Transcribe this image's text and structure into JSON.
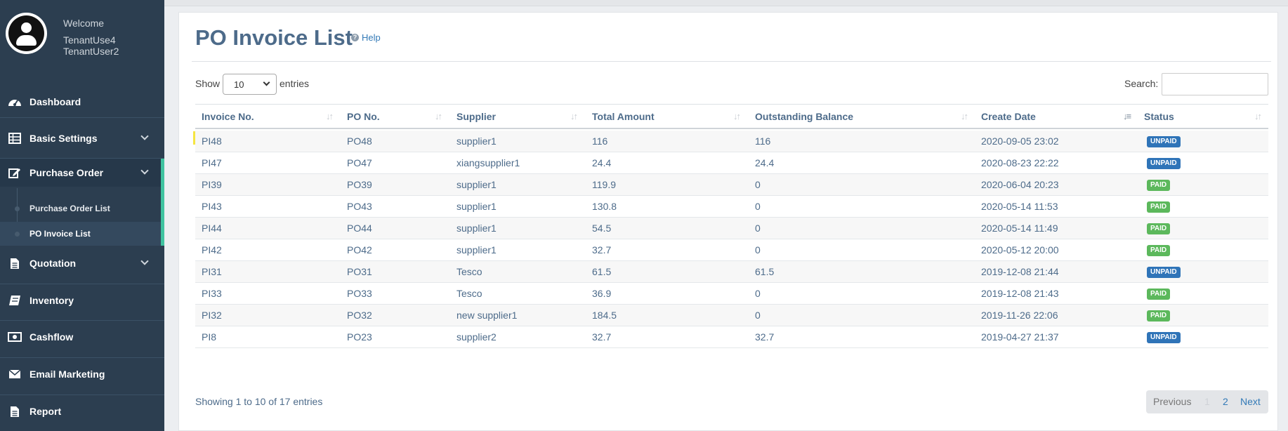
{
  "sidebar": {
    "welcome": "Welcome",
    "user_line1": "TenantUse4",
    "user_line2": "TenantUser2",
    "items": [
      {
        "label": "Dashboard",
        "icon": "dashboard-icon"
      },
      {
        "label": "Basic Settings",
        "icon": "table-icon"
      },
      {
        "label": "Purchase Order",
        "icon": "edit-icon"
      },
      {
        "label": "Quotation",
        "icon": "document-icon"
      },
      {
        "label": "Inventory",
        "icon": "book-icon"
      },
      {
        "label": "Cashflow",
        "icon": "money-icon"
      },
      {
        "label": "Email Marketing",
        "icon": "envelope-icon"
      },
      {
        "label": "Report",
        "icon": "report-icon"
      }
    ],
    "subitems": [
      {
        "label": "Purchase Order List"
      },
      {
        "label": "PO Invoice List"
      }
    ],
    "accent_color": "#3fc3a0"
  },
  "page": {
    "title": "PO Invoice List",
    "help": "Help"
  },
  "controls": {
    "show_label": "Show",
    "length_value": "10",
    "entries_label": "entries",
    "search_label": "Search:",
    "search_value": ""
  },
  "table": {
    "columns": [
      "Invoice No.",
      "PO No.",
      "Supplier",
      "Total Amount",
      "Outstanding Balance",
      "Create Date",
      "Status"
    ],
    "rows": [
      {
        "invoice": "PI48",
        "po": "PO48",
        "supplier": "supplier1",
        "total": "116",
        "outstanding": "116",
        "date": "2020-09-05 23:02",
        "status": "UNPAID"
      },
      {
        "invoice": "PI47",
        "po": "PO47",
        "supplier": "xiangsupplier1",
        "total": "24.4",
        "outstanding": "24.4",
        "date": "2020-08-23 22:22",
        "status": "UNPAID"
      },
      {
        "invoice": "PI39",
        "po": "PO39",
        "supplier": "supplier1",
        "total": "119.9",
        "outstanding": "0",
        "date": "2020-06-04 20:23",
        "status": "PAID"
      },
      {
        "invoice": "PI43",
        "po": "PO43",
        "supplier": "supplier1",
        "total": "130.8",
        "outstanding": "0",
        "date": "2020-05-14 11:53",
        "status": "PAID"
      },
      {
        "invoice": "PI44",
        "po": "PO44",
        "supplier": "supplier1",
        "total": "54.5",
        "outstanding": "0",
        "date": "2020-05-14 11:49",
        "status": "PAID"
      },
      {
        "invoice": "PI42",
        "po": "PO42",
        "supplier": "supplier1",
        "total": "32.7",
        "outstanding": "0",
        "date": "2020-05-12 20:00",
        "status": "PAID"
      },
      {
        "invoice": "PI31",
        "po": "PO31",
        "supplier": "Tesco",
        "total": "61.5",
        "outstanding": "61.5",
        "date": "2019-12-08 21:44",
        "status": "UNPAID"
      },
      {
        "invoice": "PI33",
        "po": "PO33",
        "supplier": "Tesco",
        "total": "36.9",
        "outstanding": "0",
        "date": "2019-12-08 21:43",
        "status": "PAID"
      },
      {
        "invoice": "PI32",
        "po": "PO32",
        "supplier": "new supplier1",
        "total": "184.5",
        "outstanding": "0",
        "date": "2019-11-26 22:06",
        "status": "PAID"
      },
      {
        "invoice": "PI8",
        "po": "PO23",
        "supplier": "supplier2",
        "total": "32.7",
        "outstanding": "32.7",
        "date": "2019-04-27 21:37",
        "status": "UNPAID"
      }
    ],
    "highlight_color": "#f4e22d",
    "status_colors": {
      "UNPAID": "#2f74b8",
      "PAID": "#5cb85c"
    }
  },
  "footer": {
    "info": "Showing 1 to 10 of 17 entries",
    "previous": "Previous",
    "page1": "1",
    "page2": "2",
    "next": "Next"
  }
}
